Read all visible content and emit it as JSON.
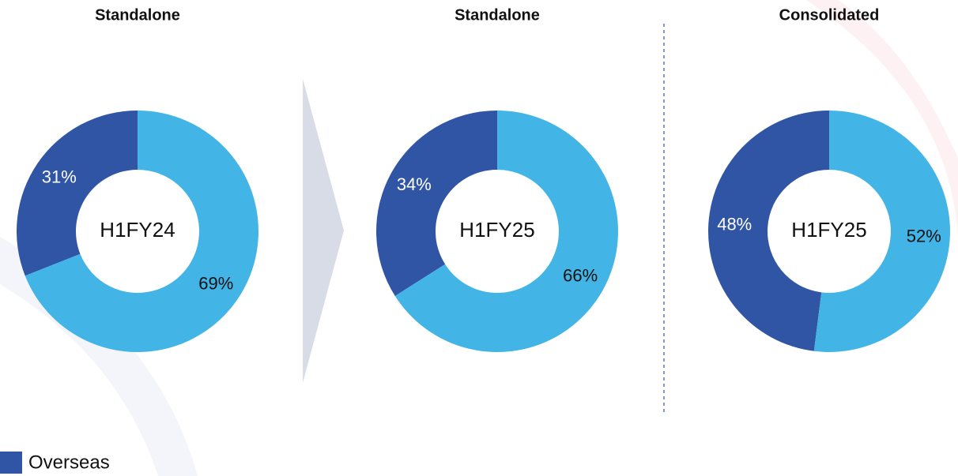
{
  "chart_data": [
    {
      "type": "pie",
      "title": "Standalone",
      "center_label": "H1FY24",
      "categories": [
        "Overseas",
        null
      ],
      "values": [
        31,
        69
      ],
      "value_labels": [
        "31%",
        "69%"
      ],
      "colors": [
        "#3155a5",
        "#42b4e6"
      ]
    },
    {
      "type": "pie",
      "title": "Standalone",
      "center_label": "H1FY25",
      "categories": [
        "Overseas",
        null
      ],
      "values": [
        34,
        66
      ],
      "value_labels": [
        "34%",
        "66%"
      ],
      "colors": [
        "#3155a5",
        "#42b4e6"
      ]
    },
    {
      "type": "pie",
      "title": "Consolidated",
      "center_label": "H1FY25",
      "categories": [
        "Overseas",
        null
      ],
      "values": [
        48,
        52
      ],
      "value_labels": [
        "48%",
        "52%"
      ],
      "colors": [
        "#3155a5",
        "#42b4e6"
      ]
    }
  ]
}
